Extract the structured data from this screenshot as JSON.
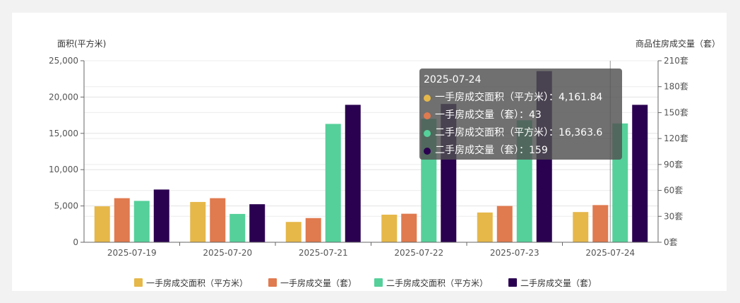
{
  "chart_data": {
    "type": "bar",
    "categories": [
      "2025-07-19",
      "2025-07-20",
      "2025-07-21",
      "2025-07-22",
      "2025-07-23",
      "2025-07-24"
    ],
    "left_axis": {
      "title": "面积(平方米)",
      "min": 0,
      "max": 25000,
      "step": 5000,
      "tick_labels": [
        "0",
        "5,000",
        "10,000",
        "15,000",
        "20,000",
        "25,000"
      ]
    },
    "right_axis": {
      "title": "商品住房成交量（套）",
      "min": 0,
      "max": 210,
      "step": 30,
      "tick_labels": [
        "0套",
        "30套",
        "60套",
        "90套",
        "120套",
        "150套",
        "180套",
        "210套"
      ]
    },
    "series": [
      {
        "name": "一手房成交面积（平方米）",
        "axis": "left",
        "color": "#e6b84a",
        "values": [
          4950,
          5550,
          2800,
          3800,
          4100,
          4161.84
        ]
      },
      {
        "name": "一手房成交量（套）",
        "axis": "right",
        "color": "#e07a4f",
        "values": [
          51,
          51,
          28,
          33,
          42,
          43
        ]
      },
      {
        "name": "二手房成交面积（平方米）",
        "axis": "left",
        "color": "#55d09a",
        "values": [
          5700,
          3900,
          16300,
          17000,
          16800,
          16363.6
        ]
      },
      {
        "name": "二手房成交量（套）",
        "axis": "right",
        "color": "#2a0050",
        "values": [
          61,
          44,
          159,
          160,
          198,
          159
        ]
      }
    ],
    "legend_position": "bottom",
    "grid": true,
    "tooltip": {
      "title": "2025-07-24",
      "rows": [
        {
          "label": "一手房成交面积（平方米）：4,161.84",
          "color": "#e6b84a"
        },
        {
          "label": "一手房成交量（套）：43",
          "color": "#e07a4f"
        },
        {
          "label": "二手房成交面积（平方米）：16,363.6",
          "color": "#55d09a"
        },
        {
          "label": "二手房成交量（套）：159",
          "color": "#2a0050"
        }
      ]
    }
  }
}
